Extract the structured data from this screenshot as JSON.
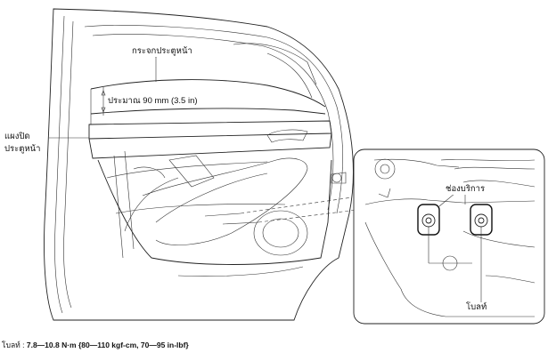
{
  "callouts": {
    "front_glass": "กระจกประตูหน้า",
    "gap": "ประมาณ 90 mm (3.5 in)",
    "trim_line1": "แผงปิด",
    "trim_line2": "ประตูหน้า",
    "service_hole": "ช่องบริการ",
    "bolt": "โบลท์"
  },
  "caption": {
    "lead": "โบลท์ : ",
    "spec": "7.8—10.8 N·m {80—110 kgf-cm, 70—95 in-lbf}"
  },
  "icons": [
    "door-outline",
    "bolt-detail-inset"
  ]
}
